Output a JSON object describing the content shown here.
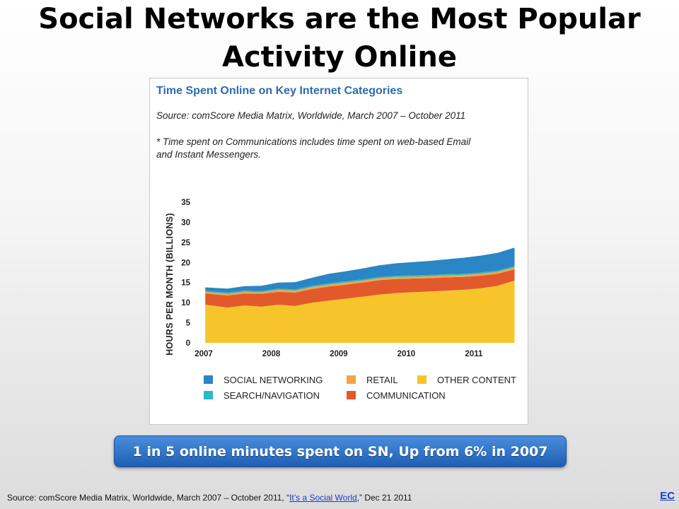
{
  "slide": {
    "title": "Social Networks are the Most Popular Activity Online",
    "callout": "1 in 5 online minutes spent on SN, Up from 6% in 2007",
    "footer": {
      "source_prefix": "Source: comScore Media Matrix, Worldwide, March 2007 – October 2011,  “",
      "link_text": "It’s a Social World",
      "source_suffix": ",” Dec 21 2011"
    },
    "ec_link": "EC"
  },
  "chart_data": {
    "type": "area",
    "stacked": true,
    "title": "Time Spent Online on Key Internet Categories",
    "subtitle": "Source: comScore Media Matrix, Worldwide, March 2007 – October 2011",
    "note_line1": "* Time spent on Communications includes time spent on web-based Email",
    "note_line2": "and Instant Messengers.",
    "ylabel": "HOURS PER MONTH (BILLIONS)",
    "ylim": [
      0,
      35
    ],
    "yticks": [
      0,
      5,
      10,
      15,
      20,
      25,
      30,
      35
    ],
    "x_ticks": [
      "2007",
      "2008",
      "2009",
      "2010",
      "2011"
    ],
    "x": [
      2007.17,
      2007.5,
      2007.75,
      2008.0,
      2008.25,
      2008.5,
      2008.75,
      2009.0,
      2009.25,
      2009.5,
      2009.75,
      2010.0,
      2010.25,
      2010.5,
      2010.75,
      2011.0,
      2011.25,
      2011.5,
      2011.75
    ],
    "xlim": [
      2007.0,
      2011.85
    ],
    "series": [
      {
        "name": "OTHER CONTENT",
        "color": "#f7c52b",
        "values": [
          9.5,
          8.8,
          9.3,
          9.0,
          9.5,
          9.2,
          10.0,
          10.5,
          11.0,
          11.5,
          12.0,
          12.4,
          12.6,
          12.8,
          13.0,
          13.2,
          13.6,
          14.2,
          15.5
        ]
      },
      {
        "name": "COMMUNICATION",
        "color": "#e25a2b",
        "values": [
          2.8,
          3.0,
          3.0,
          3.2,
          3.2,
          3.3,
          3.4,
          3.5,
          3.5,
          3.5,
          3.6,
          3.5,
          3.4,
          3.3,
          3.3,
          3.2,
          3.1,
          3.0,
          2.8
        ]
      },
      {
        "name": "RETAIL",
        "color": "#f2a543",
        "values": [
          0.4,
          0.4,
          0.4,
          0.4,
          0.5,
          0.5,
          0.5,
          0.5,
          0.5,
          0.5,
          0.5,
          0.5,
          0.5,
          0.5,
          0.5,
          0.5,
          0.5,
          0.5,
          0.5
        ]
      },
      {
        "name": "SEARCH/NAVIGATION",
        "color": "#2eb8c9",
        "values": [
          0.3,
          0.3,
          0.3,
          0.3,
          0.3,
          0.3,
          0.3,
          0.3,
          0.3,
          0.3,
          0.3,
          0.3,
          0.3,
          0.3,
          0.3,
          0.3,
          0.3,
          0.3,
          0.3
        ]
      },
      {
        "name": "SOCIAL NETWORKING",
        "color": "#2a86c4",
        "values": [
          0.8,
          1.0,
          1.1,
          1.3,
          1.5,
          1.8,
          2.0,
          2.4,
          2.5,
          2.7,
          2.9,
          3.1,
          3.3,
          3.5,
          3.7,
          4.0,
          4.2,
          4.4,
          4.6
        ]
      }
    ],
    "legend": [
      {
        "name": "SOCIAL NETWORKING",
        "color": "#2a86c4"
      },
      {
        "name": "RETAIL",
        "color": "#f2a543"
      },
      {
        "name": "OTHER CONTENT",
        "color": "#f7c52b"
      },
      {
        "name": "SEARCH/NAVIGATION",
        "color": "#2eb8c9"
      },
      {
        "name": "COMMUNICATION",
        "color": "#e25a2b"
      }
    ],
    "legend_position": "bottom",
    "grid": false
  }
}
